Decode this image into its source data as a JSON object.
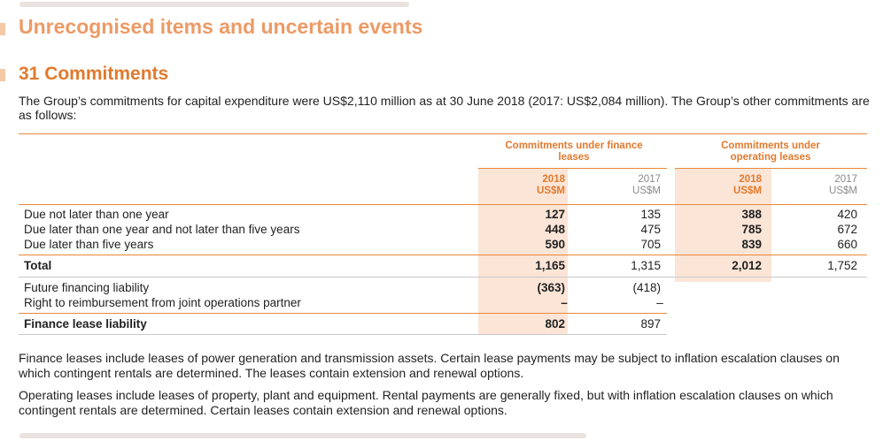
{
  "section_title": "Unrecognised items and uncertain events",
  "note": {
    "title": "31 Commitments",
    "intro": "The Group’s commitments for capital expenditure were US$2,110 million as at 30 June 2018 (2017: US$2,084 million). The Group’s other commitments are as follows:"
  },
  "table": {
    "groups": [
      {
        "label": "Commitments under finance leases"
      },
      {
        "label": "Commitments under operating leases"
      }
    ],
    "columns": [
      {
        "year": "2018",
        "unit": "US$M"
      },
      {
        "year": "2017",
        "unit": "US$M"
      },
      {
        "year": "2018",
        "unit": "US$M"
      },
      {
        "year": "2017",
        "unit": "US$M"
      }
    ],
    "rows": [
      {
        "label": "Due not later than one year",
        "values": [
          "127",
          "135",
          "388",
          "420"
        ]
      },
      {
        "label": "Due later than one year and not later than five years",
        "values": [
          "448",
          "475",
          "785",
          "672"
        ]
      },
      {
        "label": "Due later than five years",
        "values": [
          "590",
          "705",
          "839",
          "660"
        ]
      },
      {
        "label": "Total",
        "values": [
          "1,165",
          "1,315",
          "2,012",
          "1,752"
        ]
      },
      {
        "label": "Future financing liability",
        "values": [
          "(363)",
          "(418)",
          "",
          ""
        ]
      },
      {
        "label": "Right to reimbursement from joint operations partner",
        "values": [
          "–",
          "–",
          "",
          ""
        ]
      },
      {
        "label": "Finance lease liability",
        "values": [
          "802",
          "897",
          "",
          ""
        ]
      }
    ]
  },
  "footnotes": [
    "Finance leases include leases of power generation and transmission assets. Certain lease payments may be subject to inflation escalation clauses on which contingent rentals are determined. The leases contain extension and renewal options.",
    "Operating leases include leases of property, plant and equipment. Rental payments are generally fixed, but with inflation escalation clauses on which contingent rentals are determined. Certain leases contain extension and renewal options."
  ],
  "colors": {
    "accent": "#e07a2e",
    "section_title": "#ec9a66",
    "shade": "#fbe5d6"
  }
}
